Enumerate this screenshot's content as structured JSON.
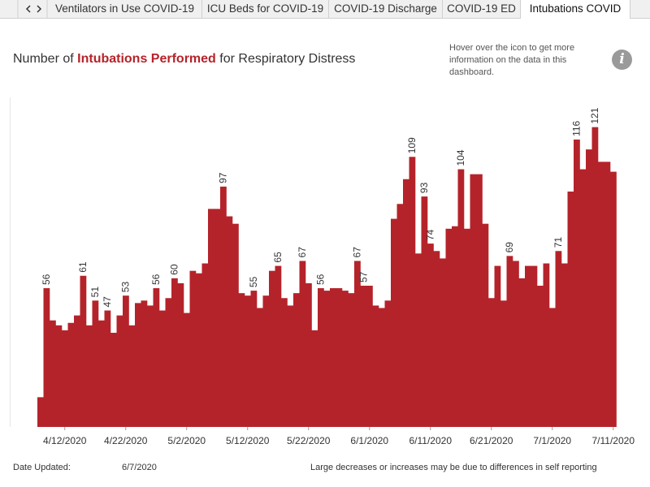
{
  "tabs": [
    "Ventilators in Use COVID-19",
    "ICU Beds for COVID-19",
    "COVID-19 Discharge",
    "COVID-19 ED",
    "Intubations COVID"
  ],
  "title_parts": [
    "Number of ",
    "Intubations Performed",
    " for Respiratory Distress"
  ],
  "info_text": "Hover over the icon to get more information on the data in this dashboard.",
  "info_icon": "i",
  "footer": {
    "date_label": "Date Updated:",
    "date": "6/7/2020",
    "note": "Large decreases or increases may be due to differences in self reporting"
  },
  "chart_data": {
    "type": "bar",
    "color": "#b5232a",
    "categories": [
      null,
      null,
      null,
      null,
      "4/12/2020",
      null,
      null,
      null,
      null,
      null,
      null,
      null,
      null,
      null,
      "4/22/2020",
      null,
      null,
      null,
      null,
      null,
      null,
      null,
      null,
      null,
      "5/2/2020",
      null,
      null,
      null,
      null,
      null,
      null,
      null,
      null,
      null,
      "5/12/2020",
      null,
      null,
      null,
      null,
      null,
      null,
      null,
      null,
      null,
      "5/22/2020",
      null,
      null,
      null,
      null,
      null,
      null,
      null,
      null,
      null,
      "6/1/2020",
      null,
      null,
      null,
      null,
      null,
      null,
      null,
      null,
      null,
      "6/11/2020",
      null,
      null,
      null,
      null,
      null,
      null,
      null,
      null,
      null,
      "6/21/2020",
      null,
      null,
      null,
      null,
      null,
      null,
      null,
      null,
      null,
      "7/1/2020",
      null,
      null,
      null,
      null,
      null,
      null,
      null,
      null,
      null,
      "7/11/2020"
    ],
    "values": [
      12,
      56,
      43,
      41,
      39,
      42,
      45,
      61,
      41,
      51,
      43,
      47,
      38,
      45,
      53,
      41,
      50,
      51,
      49,
      56,
      47,
      52,
      60,
      58,
      46,
      63,
      62,
      66,
      88,
      88,
      97,
      85,
      82,
      54,
      53,
      55,
      48,
      53,
      63,
      65,
      52,
      49,
      54,
      67,
      58,
      39,
      56,
      55,
      56,
      56,
      55,
      54,
      67,
      57,
      57,
      49,
      48,
      51,
      84,
      90,
      100,
      109,
      70,
      93,
      74,
      71,
      68,
      80,
      81,
      104,
      80,
      102,
      102,
      82,
      52,
      65,
      51,
      69,
      67,
      60,
      65,
      65,
      57,
      66,
      48,
      71,
      66,
      95,
      116,
      104,
      112,
      121,
      107,
      107,
      103
    ],
    "labeled": [
      1,
      7,
      9,
      11,
      14,
      19,
      22,
      30,
      35,
      39,
      43,
      46,
      52,
      53,
      61,
      63,
      64,
      69,
      77,
      85,
      88,
      91
    ],
    "ylim": [
      0,
      133
    ]
  }
}
